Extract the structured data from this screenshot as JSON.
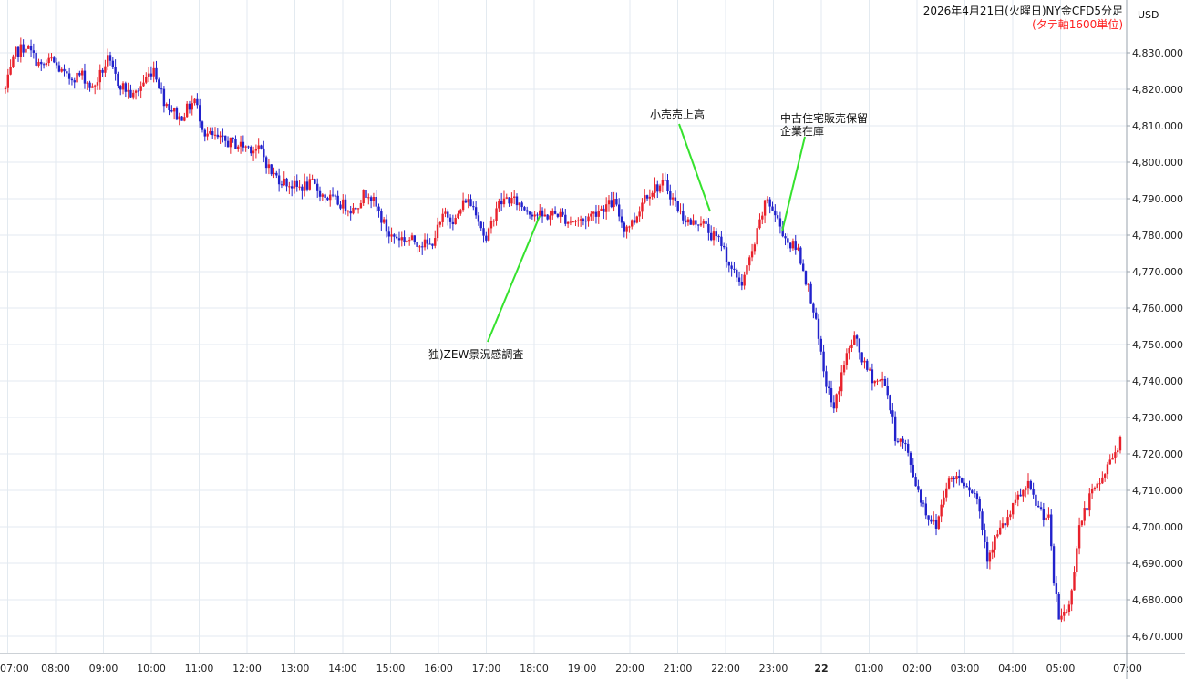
{
  "chart_data": {
    "type": "candlestick",
    "title": "2026年4月21日(火曜日)NY金CFD5分足",
    "subtitle": "(タテ軸1600単位)",
    "currency": "USD",
    "colors": {
      "up": "#e8212b",
      "down": "#2222cc",
      "grid": "#e3eaf0",
      "annotation_line": "#36e22e",
      "subtitle": "#ff1f1f"
    },
    "ylim": [
      4665,
      4836
    ],
    "y_ticks": [
      "4,670.000",
      "4,680.000",
      "4,690.000",
      "4,700.000",
      "4,710.000",
      "4,720.000",
      "4,730.000",
      "4,740.000",
      "4,750.000",
      "4,760.000",
      "4,770.000",
      "4,780.000",
      "4,790.000",
      "4,800.000",
      "4,810.000",
      "4,820.000",
      "4,830.000"
    ],
    "x_ticks": [
      "07:00",
      "08:00",
      "09:00",
      "10:00",
      "11:00",
      "12:00",
      "13:00",
      "14:00",
      "15:00",
      "16:00",
      "17:00",
      "18:00",
      "19:00",
      "20:00",
      "21:00",
      "22:00",
      "23:00",
      "22",
      "01:00",
      "02:00",
      "03:00",
      "04:00",
      "05:00",
      "07:00"
    ],
    "x_tick_bold": "22",
    "bar_interval": "5m",
    "grid": true,
    "path_keypoints": [
      [
        0,
        4820
      ],
      [
        4,
        4830
      ],
      [
        8,
        4832
      ],
      [
        14,
        4826
      ],
      [
        18,
        4828
      ],
      [
        24,
        4823
      ],
      [
        30,
        4824
      ],
      [
        34,
        4820
      ],
      [
        40,
        4828
      ],
      [
        44,
        4822
      ],
      [
        50,
        4818
      ],
      [
        54,
        4822
      ],
      [
        58,
        4826
      ],
      [
        62,
        4817
      ],
      [
        68,
        4812
      ],
      [
        74,
        4817
      ],
      [
        78,
        4808
      ],
      [
        84,
        4806
      ],
      [
        90,
        4805
      ],
      [
        96,
        4804
      ],
      [
        100,
        4803
      ],
      [
        104,
        4797
      ],
      [
        108,
        4795
      ],
      [
        114,
        4793
      ],
      [
        120,
        4794
      ],
      [
        124,
        4791
      ],
      [
        130,
        4789
      ],
      [
        136,
        4787
      ],
      [
        140,
        4791
      ],
      [
        142,
        4792
      ],
      [
        146,
        4786
      ],
      [
        150,
        4780
      ],
      [
        156,
        4779
      ],
      [
        162,
        4778
      ],
      [
        166,
        4777
      ],
      [
        172,
        4786
      ],
      [
        176,
        4784
      ],
      [
        180,
        4790
      ],
      [
        184,
        4787
      ],
      [
        188,
        4778
      ],
      [
        192,
        4788
      ],
      [
        196,
        4790
      ],
      [
        200,
        4789
      ],
      [
        204,
        4787
      ],
      [
        210,
        4785
      ],
      [
        216,
        4786
      ],
      [
        220,
        4784
      ],
      [
        226,
        4784
      ],
      [
        232,
        4787
      ],
      [
        238,
        4789
      ],
      [
        242,
        4782
      ],
      [
        246,
        4784
      ],
      [
        250,
        4791
      ],
      [
        254,
        4793
      ],
      [
        258,
        4794
      ],
      [
        264,
        4786
      ],
      [
        268,
        4783
      ],
      [
        272,
        4784
      ],
      [
        276,
        4780
      ],
      [
        280,
        4778
      ],
      [
        284,
        4770
      ],
      [
        288,
        4767
      ],
      [
        292,
        4775
      ],
      [
        296,
        4786
      ],
      [
        298,
        4790
      ],
      [
        302,
        4784
      ],
      [
        306,
        4778
      ],
      [
        310,
        4776
      ],
      [
        316,
        4760
      ],
      [
        320,
        4742
      ],
      [
        324,
        4732
      ],
      [
        328,
        4745
      ],
      [
        332,
        4752
      ],
      [
        336,
        4744
      ],
      [
        340,
        4740
      ],
      [
        344,
        4740
      ],
      [
        348,
        4725
      ],
      [
        352,
        4722
      ],
      [
        356,
        4712
      ],
      [
        360,
        4704
      ],
      [
        364,
        4700
      ],
      [
        368,
        4712
      ],
      [
        372,
        4714
      ],
      [
        376,
        4712
      ],
      [
        380,
        4708
      ],
      [
        384,
        4692
      ],
      [
        388,
        4698
      ],
      [
        392,
        4702
      ],
      [
        396,
        4708
      ],
      [
        400,
        4711
      ],
      [
        404,
        4705
      ],
      [
        408,
        4702
      ],
      [
        410,
        4685
      ],
      [
        412,
        4675
      ],
      [
        416,
        4678
      ],
      [
        420,
        4700
      ],
      [
        424,
        4708
      ],
      [
        428,
        4712
      ],
      [
        432,
        4718
      ],
      [
        436,
        4724
      ]
    ]
  },
  "annotations": [
    {
      "label": "独)ZEW景況感調査",
      "lines": [
        "独)ZEW景況感調査"
      ]
    },
    {
      "label": "小売売上高",
      "lines": [
        "小売売上高"
      ]
    },
    {
      "label": "中古住宅販売保留 企業在庫",
      "lines": [
        "中古住宅販売保留",
        "企業在庫"
      ]
    }
  ]
}
